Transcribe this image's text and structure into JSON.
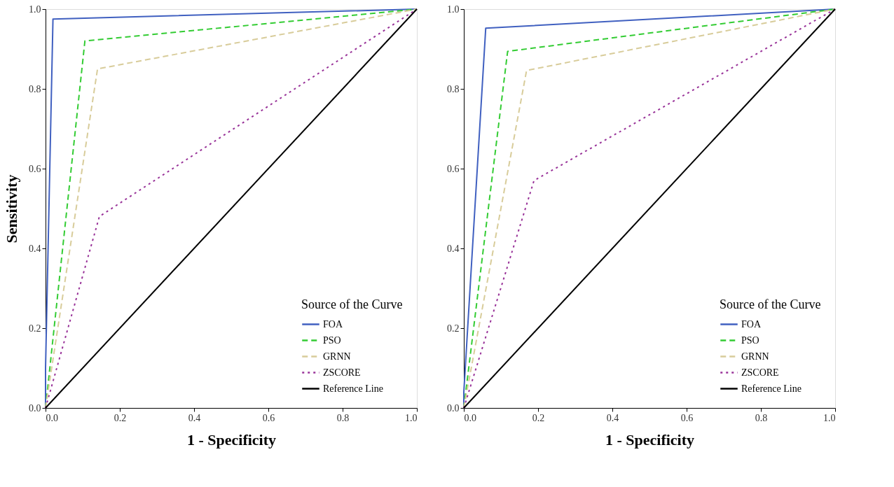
{
  "chart_data": [
    {
      "type": "line",
      "xlabel": "1 - Specificity",
      "ylabel": "Sensitivity",
      "legend_title": "Source of the Curve",
      "legend": "bottom right",
      "grid": false,
      "marker": "none",
      "xlim": [
        0,
        1
      ],
      "ylim": [
        0,
        1
      ],
      "xticks": [
        {
          "value": 0,
          "label": "0.0"
        },
        {
          "value": 0.2,
          "label": "0.2"
        },
        {
          "value": 0.4,
          "label": "0.4"
        },
        {
          "value": 0.6,
          "label": "0.6"
        },
        {
          "value": 0.8,
          "label": "0.8"
        },
        {
          "value": 1,
          "label": "1.0"
        }
      ],
      "yticks": [
        {
          "value": 0,
          "label": "0.0"
        },
        {
          "value": 0.2,
          "label": "0.2"
        },
        {
          "value": 0.4,
          "label": "0.4"
        },
        {
          "value": 0.6,
          "label": "0.6"
        },
        {
          "value": 0.8,
          "label": "0.8"
        },
        {
          "value": 1,
          "label": "1.0"
        }
      ],
      "series": [
        {
          "name": "FOA",
          "color": "#4060c0",
          "line_style": "solid",
          "x": [
            0,
            0,
            0.02,
            1
          ],
          "values": [
            0,
            0.1,
            0.975,
            1
          ]
        },
        {
          "name": "PSO",
          "color": "#33cc33",
          "line_style": "dashed",
          "x": [
            0,
            0.106,
            1
          ],
          "values": [
            0,
            0.92,
            1
          ]
        },
        {
          "name": "GRNN",
          "color": "#d8cc9a",
          "line_style": "dashed",
          "x": [
            0,
            0.14,
            1
          ],
          "values": [
            0,
            0.85,
            1
          ]
        },
        {
          "name": "ZSCORE",
          "color": "#993399",
          "line_style": "dotted",
          "x": [
            0,
            0.145,
            1
          ],
          "values": [
            0,
            0.48,
            1
          ]
        },
        {
          "name": "Reference Line",
          "color": "#000000",
          "line_style": "solid",
          "x": [
            0,
            1
          ],
          "values": [
            0,
            1
          ]
        }
      ]
    },
    {
      "type": "line",
      "xlabel": "1 - Specificity",
      "legend_title": "Source of the Curve",
      "legend": "bottom right",
      "grid": false,
      "marker": "none",
      "xlim": [
        0,
        1
      ],
      "ylim": [
        0,
        1
      ],
      "xticks": [
        {
          "value": 0,
          "label": "0.0"
        },
        {
          "value": 0.2,
          "label": "0.2"
        },
        {
          "value": 0.4,
          "label": "0.4"
        },
        {
          "value": 0.6,
          "label": "0.6"
        },
        {
          "value": 0.8,
          "label": "0.8"
        },
        {
          "value": 1,
          "label": "1.0"
        }
      ],
      "yticks": [
        {
          "value": 0,
          "label": "0.0"
        },
        {
          "value": 0.2,
          "label": "0.2"
        },
        {
          "value": 0.4,
          "label": "0.4"
        },
        {
          "value": 0.6,
          "label": "0.6"
        },
        {
          "value": 0.8,
          "label": "0.8"
        },
        {
          "value": 1,
          "label": "1.0"
        }
      ],
      "series": [
        {
          "name": "FOA",
          "color": "#4060c0",
          "line_style": "solid",
          "x": [
            0,
            0,
            0.059,
            1
          ],
          "values": [
            0,
            0.04,
            0.952,
            1
          ]
        },
        {
          "name": "PSO",
          "color": "#33cc33",
          "line_style": "dashed",
          "x": [
            0,
            0.118,
            1
          ],
          "values": [
            0,
            0.894,
            1
          ]
        },
        {
          "name": "GRNN",
          "color": "#d8cc9a",
          "line_style": "dashed",
          "x": [
            0,
            0.169,
            1
          ],
          "values": [
            0,
            0.846,
            1
          ]
        },
        {
          "name": "ZSCORE",
          "color": "#993399",
          "line_style": "dotted",
          "x": [
            0,
            0.189,
            1
          ],
          "values": [
            0,
            0.57,
            1
          ]
        },
        {
          "name": "Reference Line",
          "color": "#000000",
          "line_style": "solid",
          "x": [
            0,
            1
          ],
          "values": [
            0,
            1
          ]
        }
      ]
    }
  ]
}
